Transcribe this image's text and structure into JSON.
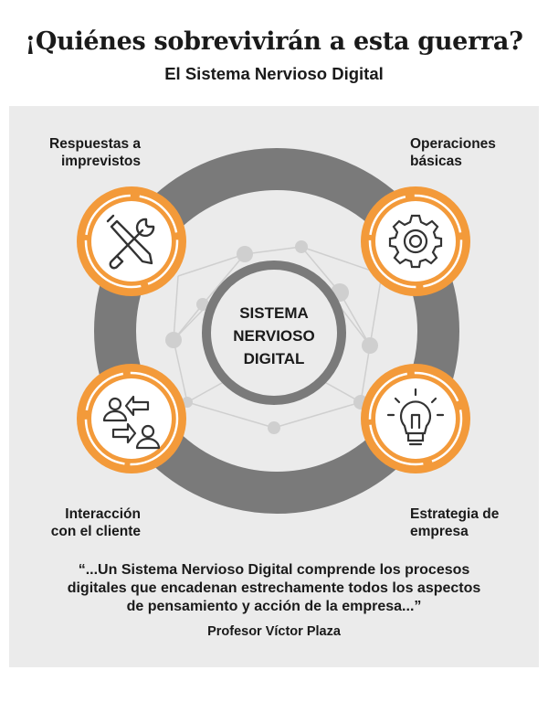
{
  "header": {
    "title": "¡Quiénes sobrevivirán a esta guerra?",
    "subtitle": "El Sistema Nervioso Digital"
  },
  "center": {
    "line1": "SISTEMA",
    "line2": "NERVIOSO",
    "line3": "DIGITAL"
  },
  "nodes": [
    {
      "label_line1": "Respuestas a",
      "label_line2": "imprevistos",
      "icon": "tools-icon"
    },
    {
      "label_line1": "Operaciones",
      "label_line2": "básicas",
      "icon": "gear-icon"
    },
    {
      "label_line1": "Interacción",
      "label_line2": "con el cliente",
      "icon": "users-exchange-icon"
    },
    {
      "label_line1": "Estrategia de",
      "label_line2": "empresa",
      "icon": "lightbulb-icon"
    }
  ],
  "quote": {
    "line1": "“...Un Sistema Nervioso Digital comprende los procesos",
    "line2": "digitales que encadenan estrechamente todos los aspectos",
    "line3": "de pensamiento y acción de la empresa...”",
    "author": "Profesor Víctor Plaza"
  },
  "colors": {
    "orange": "#f39a3a",
    "ring_gray": "#7a7a7a",
    "panel": "#ebebeb",
    "network": "#c8c8c8"
  }
}
